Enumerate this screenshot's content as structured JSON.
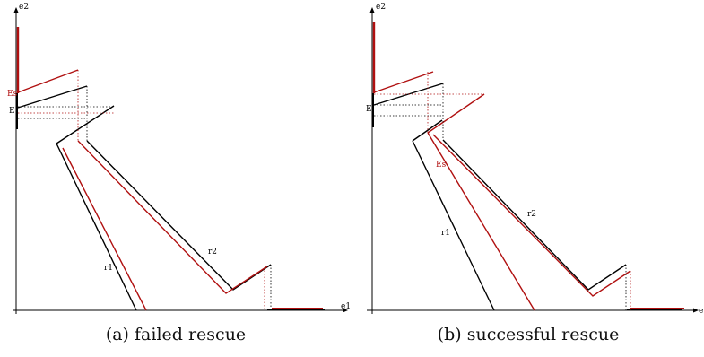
{
  "colors": {
    "original": "#000000",
    "perturbed": "#b01010"
  },
  "panels": [
    {
      "caption_tag": "(a)",
      "caption_text": "failed rescue",
      "labels": {
        "e1": "e1",
        "e2": "e2",
        "E": "E",
        "Es": "Es",
        "r1": "r1",
        "r2": "r2"
      }
    },
    {
      "caption_tag": "(b)",
      "caption_text": "successful rescue",
      "labels": {
        "e1": "e",
        "e2": "e2",
        "E": "E",
        "Es": "Es",
        "r1": "r1",
        "r2": "r2"
      }
    }
  ]
}
